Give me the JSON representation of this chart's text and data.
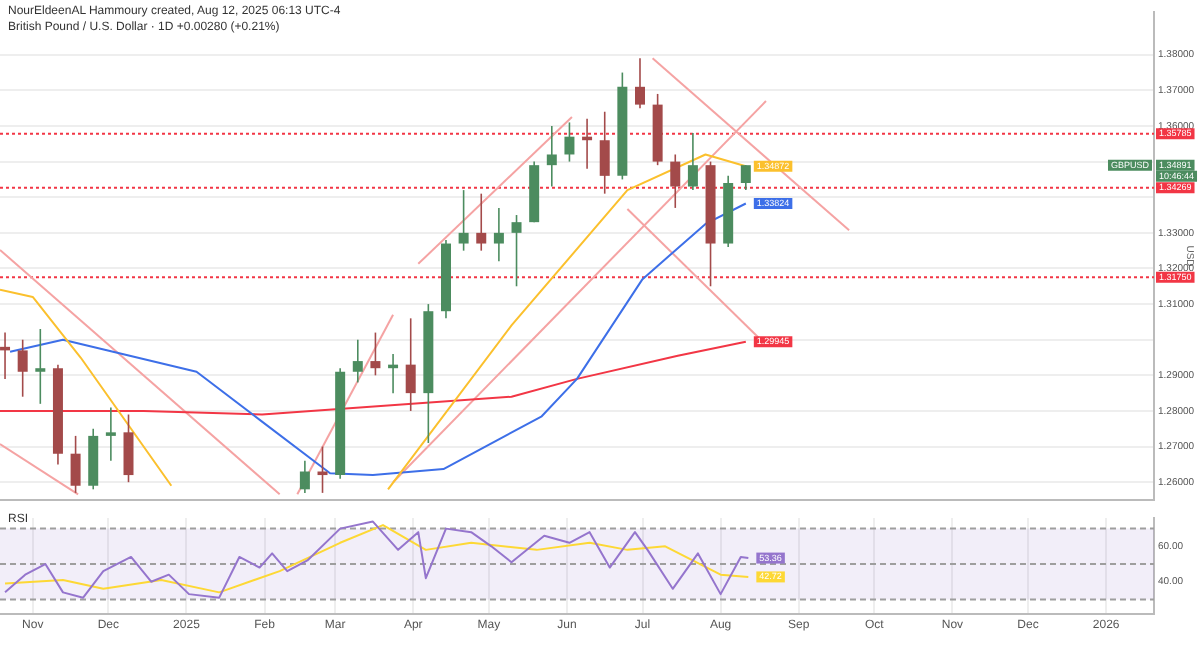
{
  "chart_data": [
    {
      "type": "candlestick",
      "title": "NourEldeenAL Hammoury created, Aug 12, 2025 06:13 UTC-4",
      "subtitle": "British Pound / U.S. Dollar · 1D  +0.00280 (+0.21%)",
      "ylabel": "USD",
      "x": [
        "2024-10-21",
        "2024-10-28",
        "2024-11-04",
        "2024-11-11",
        "2024-11-18",
        "2024-11-25",
        "2024-12-02",
        "2024-12-09",
        "2025-02-17",
        "2025-02-24",
        "2025-03-03",
        "2025-03-10",
        "2025-03-17",
        "2025-03-24",
        "2025-03-31",
        "2025-04-07",
        "2025-04-14",
        "2025-04-21",
        "2025-04-28",
        "2025-05-05",
        "2025-05-12",
        "2025-05-19",
        "2025-05-26",
        "2025-06-02",
        "2025-06-09",
        "2025-06-16",
        "2025-06-23",
        "2025-06-30",
        "2025-07-07",
        "2025-07-14",
        "2025-07-21",
        "2025-07-28",
        "2025-08-04",
        "2025-08-11"
      ],
      "ohlc": [
        [
          1.298,
          1.302,
          1.289,
          1.297
        ],
        [
          1.297,
          1.3,
          1.284,
          1.291
        ],
        [
          1.291,
          1.303,
          1.282,
          1.292
        ],
        [
          1.292,
          1.293,
          1.265,
          1.268
        ],
        [
          1.268,
          1.273,
          1.257,
          1.259
        ],
        [
          1.259,
          1.275,
          1.258,
          1.273
        ],
        [
          1.273,
          1.281,
          1.266,
          1.274
        ],
        [
          1.274,
          1.279,
          1.26,
          1.262
        ],
        [
          1.258,
          1.266,
          1.257,
          1.263
        ],
        [
          1.263,
          1.27,
          1.257,
          1.262
        ],
        [
          1.262,
          1.292,
          1.261,
          1.291
        ],
        [
          1.291,
          1.3,
          1.288,
          1.294
        ],
        [
          1.294,
          1.302,
          1.29,
          1.292
        ],
        [
          1.292,
          1.296,
          1.285,
          1.293
        ],
        [
          1.293,
          1.306,
          1.28,
          1.285
        ],
        [
          1.285,
          1.31,
          1.271,
          1.308
        ],
        [
          1.308,
          1.328,
          1.306,
          1.327
        ],
        [
          1.327,
          1.342,
          1.325,
          1.33
        ],
        [
          1.33,
          1.341,
          1.325,
          1.327
        ],
        [
          1.327,
          1.337,
          1.322,
          1.33
        ],
        [
          1.33,
          1.335,
          1.315,
          1.333
        ],
        [
          1.333,
          1.35,
          1.333,
          1.349
        ],
        [
          1.349,
          1.36,
          1.343,
          1.352
        ],
        [
          1.352,
          1.361,
          1.35,
          1.357
        ],
        [
          1.357,
          1.362,
          1.348,
          1.356
        ],
        [
          1.356,
          1.364,
          1.341,
          1.346
        ],
        [
          1.346,
          1.375,
          1.345,
          1.371
        ],
        [
          1.371,
          1.379,
          1.365,
          1.366
        ],
        [
          1.366,
          1.369,
          1.349,
          1.35
        ],
        [
          1.35,
          1.352,
          1.337,
          1.343
        ],
        [
          1.343,
          1.358,
          1.342,
          1.349
        ],
        [
          1.349,
          1.35,
          1.315,
          1.327
        ],
        [
          1.327,
          1.346,
          1.326,
          1.344
        ],
        [
          1.344,
          1.349,
          1.342,
          1.349
        ]
      ],
      "colors": [
        "#a34a4a",
        "#a34a4a",
        "#4c8c5f",
        "#a34a4a",
        "#a34a4a",
        "#4c8c5f",
        "#4c8c5f",
        "#a34a4a",
        "#4c8c5f",
        "#a34a4a",
        "#4c8c5f",
        "#4c8c5f",
        "#a34a4a",
        "#4c8c5f",
        "#a34a4a",
        "#4c8c5f",
        "#4c8c5f",
        "#4c8c5f",
        "#a34a4a",
        "#4c8c5f",
        "#4c8c5f",
        "#4c8c5f",
        "#4c8c5f",
        "#4c8c5f",
        "#a34a4a",
        "#a34a4a",
        "#4c8c5f",
        "#a34a4a",
        "#a34a4a",
        "#a34a4a",
        "#4c8c5f",
        "#a34a4a",
        "#4c8c5f",
        "#4c8c5f"
      ],
      "series": [
        {
          "type": "line",
          "color": "#fbc02d",
          "x": [
            "2024-10-19",
            "2024-11-01",
            "2024-11-20",
            "2024-12-10",
            "2024-12-26"
          ],
          "values": [
            1.314,
            1.312,
            1.295,
            1.275,
            1.259
          ]
        },
        {
          "type": "line",
          "color": "#fbc02d",
          "x": [
            "2025-03-22",
            "2025-05-10",
            "2025-06-25",
            "2025-07-26",
            "2025-08-11"
          ],
          "values": [
            1.258,
            1.304,
            1.342,
            1.352,
            1.34872
          ],
          "value_labels": [
            null,
            null,
            null,
            null,
            "1.34872"
          ]
        },
        {
          "type": "line",
          "color": "#3d6fe8",
          "x": [
            "2024-10-23",
            "2024-11-13",
            "2025-01-05",
            "2025-01-31",
            "2025-02-27",
            "2025-03-16",
            "2025-04-13",
            "2025-05-22",
            "2025-06-05",
            "2025-07-01",
            "2025-07-26",
            "2025-08-11"
          ],
          "values": [
            1.2966,
            1.3,
            1.291,
            1.277,
            1.2625,
            1.262,
            1.2637,
            1.2785,
            1.289,
            1.317,
            1.3325,
            1.33824
          ],
          "value_labels": [
            null,
            null,
            null,
            null,
            null,
            null,
            null,
            null,
            null,
            null,
            null,
            "1.33824"
          ]
        },
        {
          "type": "line",
          "color": "#f23645",
          "x": [
            "2024-10-19",
            "2024-12-15",
            "2025-01-31",
            "2025-05-10",
            "2025-06-05",
            "2025-07-15",
            "2025-08-11"
          ],
          "values": [
            1.28,
            1.28,
            1.279,
            1.284,
            1.289,
            1.2955,
            1.29945
          ],
          "value_labels": [
            null,
            null,
            null,
            null,
            null,
            null,
            "1.29945"
          ]
        },
        {
          "type": "line",
          "color": "#f5a3a3",
          "x": [
            "2024-10-19",
            "2025-02-07"
          ],
          "values": [
            1.3252,
            1.2566
          ]
        },
        {
          "type": "line",
          "color": "#f5a3a3",
          "x": [
            "2024-10-19",
            "2024-11-19"
          ],
          "values": [
            1.2707,
            1.2566
          ]
        },
        {
          "type": "line",
          "color": "#f5a3a3",
          "x": [
            "2025-02-14",
            "2025-03-24"
          ],
          "values": [
            1.2566,
            1.307
          ]
        },
        {
          "type": "line",
          "color": "#f5a3a3",
          "x": [
            "2025-04-03",
            "2025-06-03"
          ],
          "values": [
            1.3213,
            1.3625
          ]
        },
        {
          "type": "line",
          "color": "#f5a3a3",
          "x": [
            "2025-03-24",
            "2025-08-19"
          ],
          "values": [
            1.26,
            1.367
          ]
        },
        {
          "type": "line",
          "color": "#f5a3a3",
          "x": [
            "2025-07-05",
            "2025-09-21"
          ],
          "values": [
            1.379,
            1.3307
          ]
        },
        {
          "type": "line",
          "color": "#f5a3a3",
          "x": [
            "2025-06-25",
            "2025-08-16"
          ],
          "values": [
            1.3367,
            1.3006
          ]
        }
      ],
      "ref_lines": [
        {
          "axis": "y",
          "value": 1.35785,
          "label": "1.35785",
          "color": "#f23645",
          "line_style": "dotted"
        },
        {
          "axis": "y",
          "value": 1.34269,
          "label": "1.34269",
          "color": "#f23645",
          "line_style": "dotted"
        },
        {
          "axis": "y",
          "value": 1.3175,
          "label": "1.31750",
          "color": "#f23645",
          "line_style": "dotted"
        }
      ],
      "annotations": [
        "GBPUSD",
        "1.34891",
        "10:46:44"
      ],
      "xlim": [
        "2024-10-19",
        "2026-01-20"
      ],
      "xticks": [
        {
          "value": "2024-11-01",
          "label": null
        },
        {
          "value": "2024-12-01",
          "label": null
        },
        {
          "value": "2025-01-01",
          "label": null
        },
        {
          "value": "2025-02-01",
          "label": null
        },
        {
          "value": "2025-03-01",
          "label": null
        },
        {
          "value": "2025-04-01",
          "label": null
        },
        {
          "value": "2025-05-01",
          "label": null
        },
        {
          "value": "2025-06-01",
          "label": null
        },
        {
          "value": "2025-07-01",
          "label": null
        },
        {
          "value": "2025-08-01",
          "label": null
        },
        {
          "value": "2025-09-01",
          "label": null
        },
        {
          "value": "2025-10-01",
          "label": null
        },
        {
          "value": "2025-11-01",
          "label": null
        },
        {
          "value": "2025-12-01",
          "label": null
        },
        {
          "value": "2026-01-01",
          "label": null
        }
      ],
      "ylim": [
        1.255,
        1.392
      ],
      "yticks": [
        {
          "value": 1.26,
          "label": "1.26000"
        },
        {
          "value": 1.27,
          "label": "1.27000"
        },
        {
          "value": 1.28,
          "label": "1.28000"
        },
        {
          "value": 1.29,
          "label": "1.29000"
        },
        {
          "value": 1.3,
          "label": null
        },
        {
          "value": 1.31,
          "label": "1.31000"
        },
        {
          "value": 1.32,
          "label": "1.32000"
        },
        {
          "value": 1.33,
          "label": "1.33000"
        },
        {
          "value": 1.34,
          "label": null
        },
        {
          "value": 1.35,
          "label": null
        },
        {
          "value": 1.36,
          "label": "1.36000"
        },
        {
          "value": 1.37,
          "label": "1.37000"
        },
        {
          "value": 1.38,
          "label": "1.38000"
        }
      ],
      "grid": true,
      "tick_labels": "y"
    },
    {
      "type": "line",
      "title": "RSI",
      "series": [
        {
          "type": "line",
          "color": "#9575cd",
          "x": [
            "2024-10-21",
            "2024-10-29",
            "2024-11-06",
            "2024-11-13",
            "2024-11-21",
            "2024-11-29",
            "2024-12-10",
            "2024-12-18",
            "2024-12-25",
            "2025-01-02",
            "2025-01-14",
            "2025-01-22",
            "2025-01-30",
            "2025-02-04",
            "2025-02-10",
            "2025-02-18",
            "2025-03-03",
            "2025-03-16",
            "2025-03-26",
            "2025-04-03",
            "2025-04-06",
            "2025-04-14",
            "2025-04-24",
            "2025-05-02",
            "2025-05-10",
            "2025-05-23",
            "2025-06-02",
            "2025-06-10",
            "2025-06-18",
            "2025-06-28",
            "2025-07-03",
            "2025-07-13",
            "2025-07-23",
            "2025-08-01",
            "2025-08-09",
            "2025-08-12"
          ],
          "values": [
            34,
            44,
            50,
            34,
            31,
            46,
            54,
            40,
            44,
            33,
            31,
            54,
            48,
            56,
            46,
            52,
            70,
            74,
            58,
            68,
            42,
            70,
            68,
            60,
            51,
            66,
            62,
            68,
            48,
            68,
            58,
            36,
            56,
            33,
            54,
            53.36
          ],
          "value_labels": [
            null,
            null,
            null,
            null,
            null,
            null,
            null,
            null,
            null,
            null,
            null,
            null,
            null,
            null,
            null,
            null,
            null,
            null,
            null,
            null,
            null,
            null,
            null,
            null,
            null,
            null,
            null,
            null,
            null,
            null,
            null,
            null,
            null,
            null,
            null,
            "53.36"
          ]
        },
        {
          "type": "line",
          "color": "#fdd835",
          "x": [
            "2024-10-21",
            "2024-11-13",
            "2024-11-29",
            "2024-12-22",
            "2025-01-14",
            "2025-02-07",
            "2025-03-03",
            "2025-03-20",
            "2025-04-06",
            "2025-04-24",
            "2025-05-20",
            "2025-06-10",
            "2025-06-25",
            "2025-07-10",
            "2025-08-01",
            "2025-08-12"
          ],
          "values": [
            39,
            41,
            36,
            41,
            34,
            46,
            62,
            72,
            58,
            62,
            58,
            62,
            58,
            60,
            44,
            42.72
          ],
          "value_labels": [
            null,
            null,
            null,
            null,
            null,
            null,
            null,
            null,
            null,
            null,
            null,
            null,
            null,
            null,
            null,
            "42.72"
          ]
        }
      ],
      "bands": [
        {
          "axis": "y",
          "from": 30,
          "to": 70,
          "color": "#7e57c2"
        }
      ],
      "ref_lines": [
        {
          "axis": "y",
          "value": 70,
          "color": "#9e9e9e",
          "line_style": "dashed"
        },
        {
          "axis": "y",
          "value": 50,
          "color": "#9e9e9e",
          "line_style": "dashed"
        },
        {
          "axis": "y",
          "value": 30,
          "color": "#9e9e9e",
          "line_style": "dashed"
        }
      ],
      "xlim": [
        "2024-10-19",
        "2026-01-20"
      ],
      "xticks": [
        {
          "value": "2024-11-01",
          "label": "Nov"
        },
        {
          "value": "2024-12-01",
          "label": "Dec"
        },
        {
          "value": "2025-01-01",
          "label": "2025"
        },
        {
          "value": "2025-02-01",
          "label": "Feb"
        },
        {
          "value": "2025-03-01",
          "label": "Mar"
        },
        {
          "value": "2025-04-01",
          "label": "Apr"
        },
        {
          "value": "2025-05-01",
          "label": "May"
        },
        {
          "value": "2025-06-01",
          "label": "Jun"
        },
        {
          "value": "2025-07-01",
          "label": "Jul"
        },
        {
          "value": "2025-08-01",
          "label": "Aug"
        },
        {
          "value": "2025-09-01",
          "label": "Sep"
        },
        {
          "value": "2025-10-01",
          "label": "Oct"
        },
        {
          "value": "2025-11-01",
          "label": "Nov"
        },
        {
          "value": "2025-12-01",
          "label": "Dec"
        },
        {
          "value": "2026-01-01",
          "label": "2026"
        }
      ],
      "ylim": [
        22,
        76
      ],
      "yticks": [
        {
          "value": 60,
          "label": "60.00"
        },
        {
          "value": 40,
          "label": "40.00"
        }
      ],
      "grid": "x"
    }
  ]
}
